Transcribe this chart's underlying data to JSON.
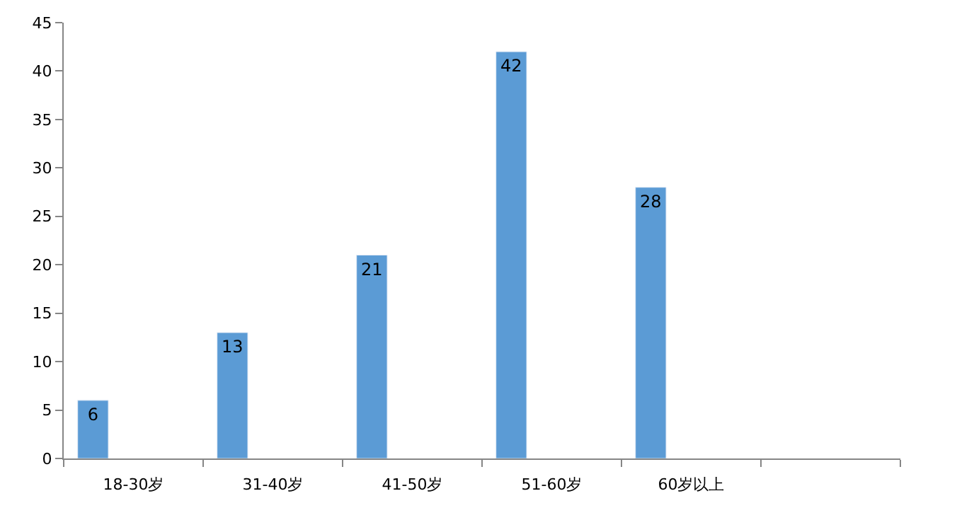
{
  "chart_data": {
    "type": "bar",
    "categories": [
      "18-30岁",
      "31-40岁",
      "41-50岁",
      "51-60岁",
      "60岁以上",
      null
    ],
    "values": [
      6,
      13,
      21,
      42,
      28,
      null
    ],
    "color": "#5b9bd5",
    "ylim": [
      0,
      45
    ],
    "yticks": [
      0,
      5,
      10,
      15,
      20,
      25,
      30,
      35,
      40,
      45
    ],
    "data_labels": true,
    "legend": false
  }
}
